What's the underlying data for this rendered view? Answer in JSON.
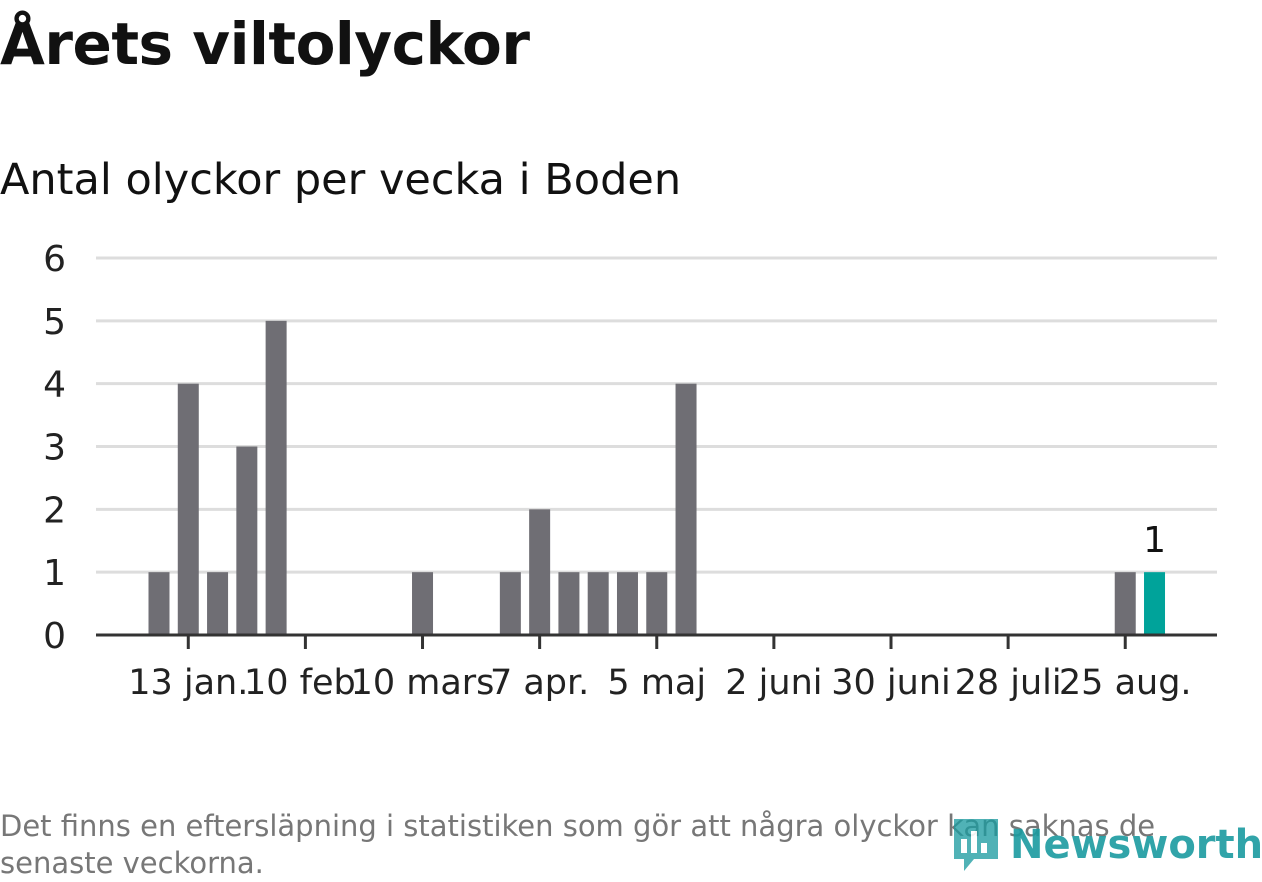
{
  "header": {
    "title": "Årets viltolyckor",
    "subtitle": "Antal olyckor per vecka i Boden"
  },
  "footer": {
    "note": "Det finns en eftersläpning i statistiken som gör att några olyckor kan saknas de senaste veckorna.",
    "brand": "Newsworthy"
  },
  "colors": {
    "bar": "#6f6e74",
    "highlight": "#00a39a",
    "grid": "#dddddd",
    "axis": "#333333",
    "brand": "#1b9ba0"
  },
  "chart_data": {
    "type": "bar",
    "title": "Årets viltolyckor",
    "subtitle": "Antal olyckor per vecka i Boden",
    "xlabel": "",
    "ylabel": "",
    "ylim": [
      0,
      6
    ],
    "yticks": [
      0,
      1,
      2,
      3,
      4,
      5,
      6
    ],
    "grid": true,
    "x_tick_labels": [
      "13 jan.",
      "10 feb.",
      "10 mars",
      "7 apr.",
      "5 maj",
      "2 juni",
      "30 juni",
      "28 juli",
      "25 aug."
    ],
    "x_tick_weeks": [
      2,
      6,
      10,
      14,
      18,
      22,
      26,
      30,
      34
    ],
    "weeks": [
      1,
      2,
      3,
      4,
      5,
      6,
      7,
      8,
      9,
      10,
      11,
      12,
      13,
      14,
      15,
      16,
      17,
      18,
      19,
      20,
      21,
      22,
      23,
      24,
      25,
      26,
      27,
      28,
      29,
      30,
      31,
      32,
      33,
      34,
      35
    ],
    "values": [
      1,
      4,
      1,
      3,
      5,
      0,
      0,
      0,
      0,
      1,
      0,
      0,
      1,
      2,
      1,
      1,
      1,
      1,
      4,
      0,
      0,
      0,
      0,
      0,
      0,
      0,
      0,
      0,
      0,
      0,
      0,
      0,
      0,
      1,
      1
    ],
    "highlight_week": 35,
    "highlight_label": "1"
  }
}
